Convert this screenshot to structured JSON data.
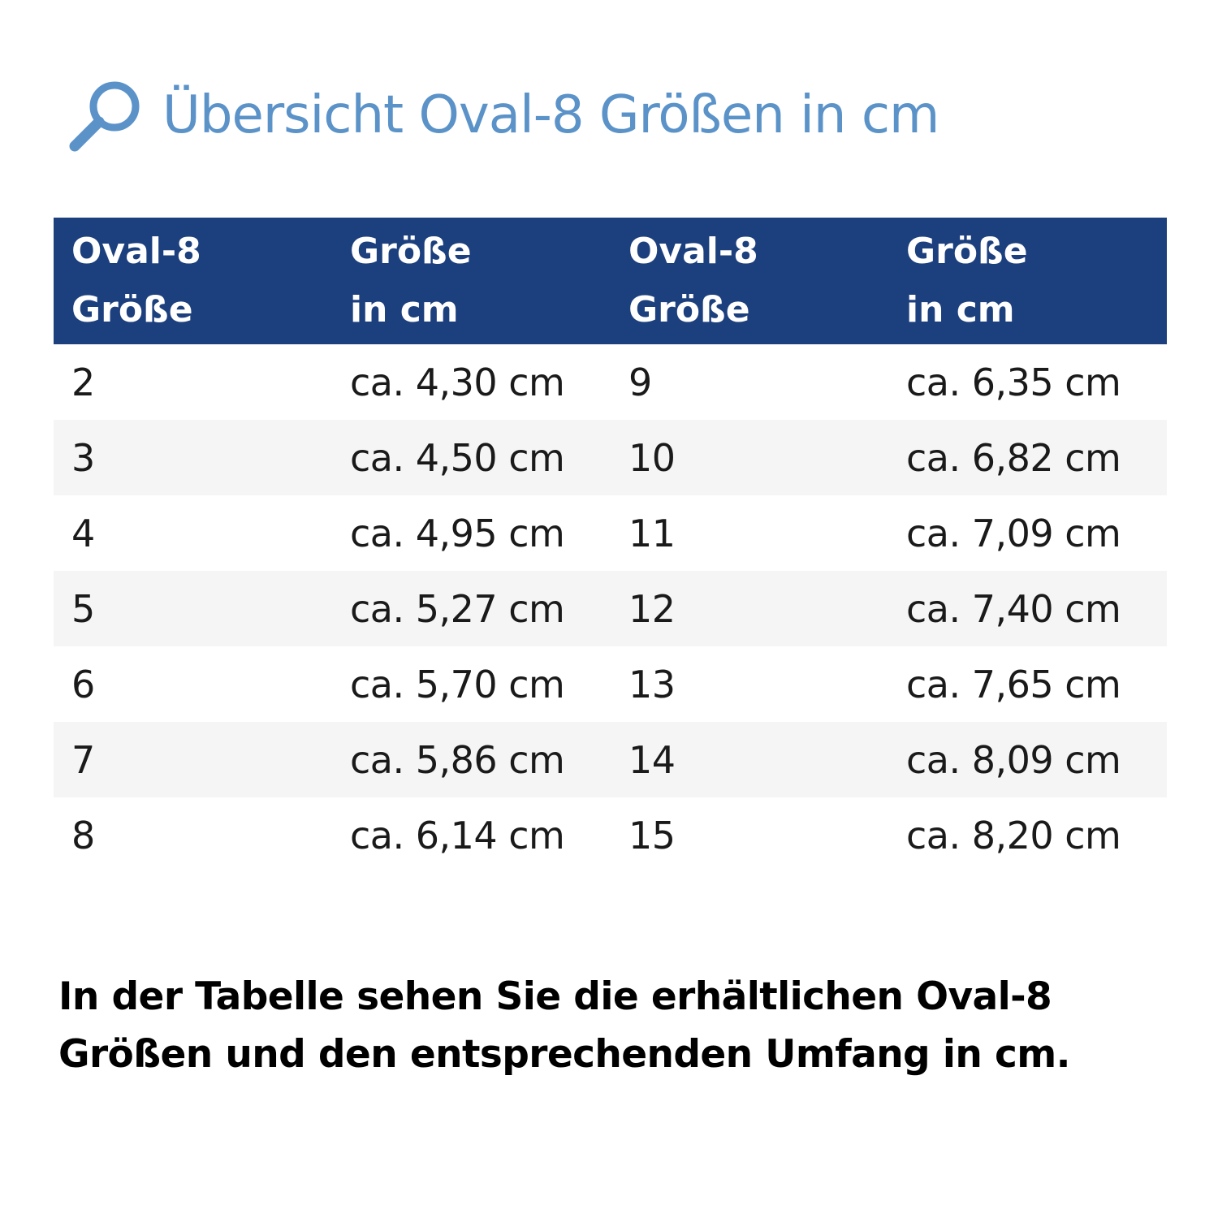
{
  "header": {
    "icon": "magnifier-icon",
    "title": "Übersicht Oval-8 Größen in cm"
  },
  "table": {
    "columns": [
      {
        "line1": "Oval-8",
        "line2": "Größe"
      },
      {
        "line1": "Größe",
        "line2": "in cm"
      },
      {
        "line1": "Oval-8",
        "line2": "Größe"
      },
      {
        "line1": "Größe",
        "line2": "in cm"
      }
    ],
    "rows": [
      [
        "2",
        "ca. 4,30 cm",
        "9",
        "ca. 6,35 cm"
      ],
      [
        "3",
        "ca. 4,50 cm",
        "10",
        "ca. 6,82 cm"
      ],
      [
        "4",
        "ca. 4,95 cm",
        "11",
        "ca. 7,09 cm"
      ],
      [
        "5",
        "ca. 5,27 cm",
        "12",
        "ca. 7,40 cm"
      ],
      [
        "6",
        "ca. 5,70 cm",
        "13",
        "ca. 7,65 cm"
      ],
      [
        "7",
        "ca. 5,86 cm",
        "14",
        "ca. 8,09 cm"
      ],
      [
        "8",
        "ca. 6,14 cm",
        "15",
        "ca. 8,20 cm"
      ]
    ]
  },
  "footer": {
    "line1": "In der Tabelle sehen Sie die erhältlichen Oval-8",
    "line2": "Größen und den entsprechenden Umfang in cm."
  },
  "colors": {
    "title": "#5b93c9",
    "header_bg": "#1c3f7d",
    "stripe": "#f5f5f5"
  }
}
